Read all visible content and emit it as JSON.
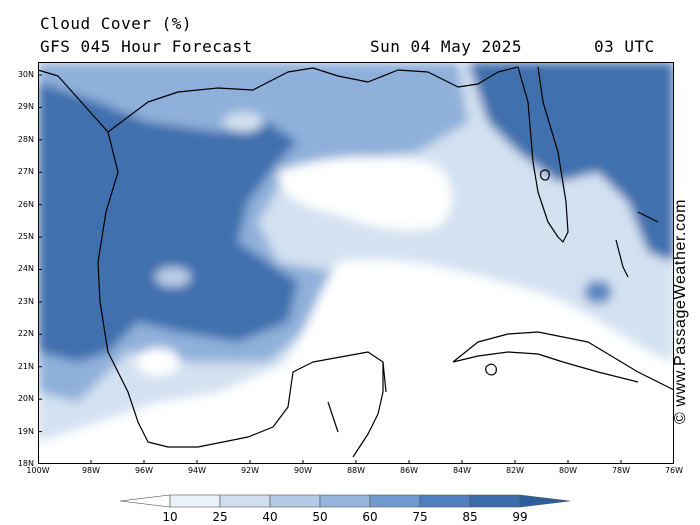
{
  "header": {
    "title": "Cloud Cover (%)",
    "model_line": "GFS 045 Hour Forecast",
    "date": "Sun 04 May 2025",
    "time": "03 UTC"
  },
  "map": {
    "lat_labels": [
      "30N",
      "29N",
      "28N",
      "27N",
      "26N",
      "25N",
      "24N",
      "23N",
      "22N",
      "21N",
      "20N",
      "19N",
      "18N"
    ],
    "lon_labels": [
      "100W",
      "98W",
      "96W",
      "94W",
      "92W",
      "90W",
      "88W",
      "86W",
      "84W",
      "82W",
      "80W",
      "78W",
      "76W"
    ],
    "lat_values": [
      30,
      29,
      28,
      27,
      26,
      25,
      24,
      23,
      22,
      21,
      20,
      19,
      18
    ],
    "lon_values": [
      -100,
      -98,
      -96,
      -94,
      -92,
      -90,
      -88,
      -86,
      -84,
      -82,
      -80,
      -78,
      -76
    ],
    "lat_range": [
      18,
      30.4
    ],
    "lon_range": [
      -100,
      -76
    ],
    "ocean_color": "#ffffff",
    "land_outline_color": "#000000"
  },
  "credit": "© www.PassageWeather.com",
  "legend": {
    "ticks": [
      "10",
      "25",
      "40",
      "50",
      "60",
      "75",
      "85",
      "99"
    ],
    "colors": [
      "#ffffff",
      "#eaf1f9",
      "#d0dff0",
      "#b3cbe6",
      "#94b4dc",
      "#7099cf",
      "#4f7fc0",
      "#3b6dad",
      "#2c5d9c"
    ]
  }
}
